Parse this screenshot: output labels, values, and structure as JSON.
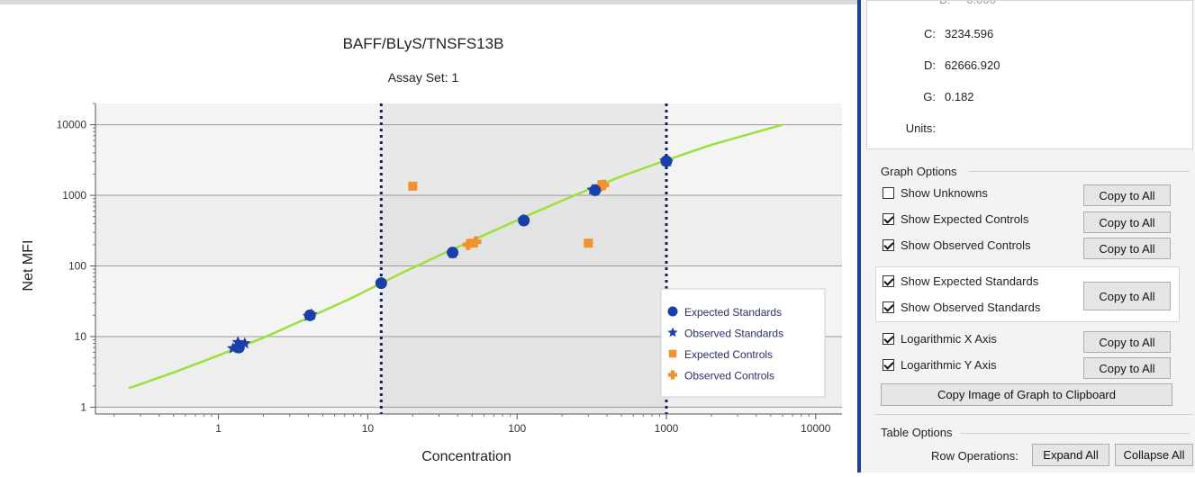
{
  "chart_data": {
    "type": "scatter",
    "title": "BAFF/BLyS/TNSFS13B",
    "subtitle": "Assay Set: 1",
    "xlabel": "Concentration",
    "ylabel": "Net MFI",
    "x_scale": "log",
    "y_scale": "log",
    "xlim": [
      0.15,
      15000
    ],
    "ylim": [
      0.8,
      20000
    ],
    "x_ticks": [
      1,
      10,
      100,
      1000,
      10000
    ],
    "x_tick_labels": [
      "1",
      "10",
      "100",
      "1000",
      "10000"
    ],
    "y_ticks": [
      1,
      10,
      100,
      1000,
      10000
    ],
    "y_tick_labels": [
      "1",
      "10",
      "100",
      "1000",
      "10000"
    ],
    "grid": "horizontal",
    "legend_position": "bottom-right",
    "range_lines": [
      12.3,
      1000
    ],
    "fit_curve": {
      "name": "",
      "color": "#9be13a",
      "points": [
        [
          0.25,
          1.85
        ],
        [
          0.5,
          3.1
        ],
        [
          1,
          5.4
        ],
        [
          2,
          9.6
        ],
        [
          4,
          18.5
        ],
        [
          8,
          36
        ],
        [
          16,
          75
        ],
        [
          32,
          150
        ],
        [
          64,
          290
        ],
        [
          128,
          560
        ],
        [
          256,
          1050
        ],
        [
          512,
          1900
        ],
        [
          1000,
          3150
        ],
        [
          2000,
          5200
        ],
        [
          6000,
          10000
        ]
      ]
    },
    "series": [
      {
        "name": "Expected Standards",
        "marker": "circle",
        "color": "#1a3fa8",
        "points": [
          [
            1.37,
            7.0
          ],
          [
            4.1,
            20
          ],
          [
            12.3,
            57
          ],
          [
            37,
            155
          ],
          [
            111,
            440
          ],
          [
            333,
            1180
          ],
          [
            1000,
            3050
          ]
        ]
      },
      {
        "name": "Observed Standards",
        "marker": "star",
        "color": "#1a3fa8",
        "points": [
          [
            1.25,
            6.8
          ],
          [
            1.35,
            8.3
          ],
          [
            1.5,
            8.0
          ],
          [
            4.0,
            19.5
          ],
          [
            4.2,
            20.5
          ],
          [
            12.3,
            58
          ],
          [
            37,
            150
          ],
          [
            110,
            450
          ],
          [
            320,
            1200
          ],
          [
            980,
            3100
          ],
          [
            1020,
            3000
          ]
        ]
      },
      {
        "name": "Expected Controls",
        "marker": "square",
        "color": "#f0922e",
        "points": [
          [
            20,
            1350
          ],
          [
            50,
            210
          ],
          [
            300,
            210
          ],
          [
            370,
            1420
          ]
        ]
      },
      {
        "name": "Observed Controls",
        "marker": "plus",
        "color": "#f0922e",
        "points": [
          [
            47,
            200
          ],
          [
            53,
            220
          ],
          [
            360,
            1350
          ],
          [
            380,
            1400
          ]
        ]
      }
    ]
  },
  "side": {
    "params": [
      {
        "label": "C:",
        "value": "3234.596"
      },
      {
        "label": "D:",
        "value": "62666.920"
      },
      {
        "label": "G:",
        "value": "0.182"
      },
      {
        "label": "Units:",
        "value": ""
      }
    ],
    "graph_options": {
      "title": "Graph Options",
      "options": [
        {
          "label": "Show Unknowns",
          "checked": false,
          "button": "Copy to All"
        },
        {
          "label": "Show Expected Controls",
          "checked": true,
          "button": "Copy to All"
        },
        {
          "label": "Show Observed Controls",
          "checked": true,
          "button": "Copy to All"
        },
        {
          "label": "Show Expected Standards",
          "checked": true
        },
        {
          "label": "Show Observed Standards",
          "checked": true
        },
        {
          "label": "Logarithmic X Axis",
          "checked": true,
          "button": "Copy to All"
        },
        {
          "label": "Logarithmic Y Axis",
          "checked": true,
          "button": "Copy to All"
        }
      ],
      "standards_button": "Copy to All",
      "copy_image_button": "Copy Image of Graph to Clipboard"
    },
    "table_options": {
      "title": "Table Options",
      "row_ops_label": "Row Operations:",
      "expand_button": "Expand All",
      "collapse_button": "Collapse All"
    }
  }
}
